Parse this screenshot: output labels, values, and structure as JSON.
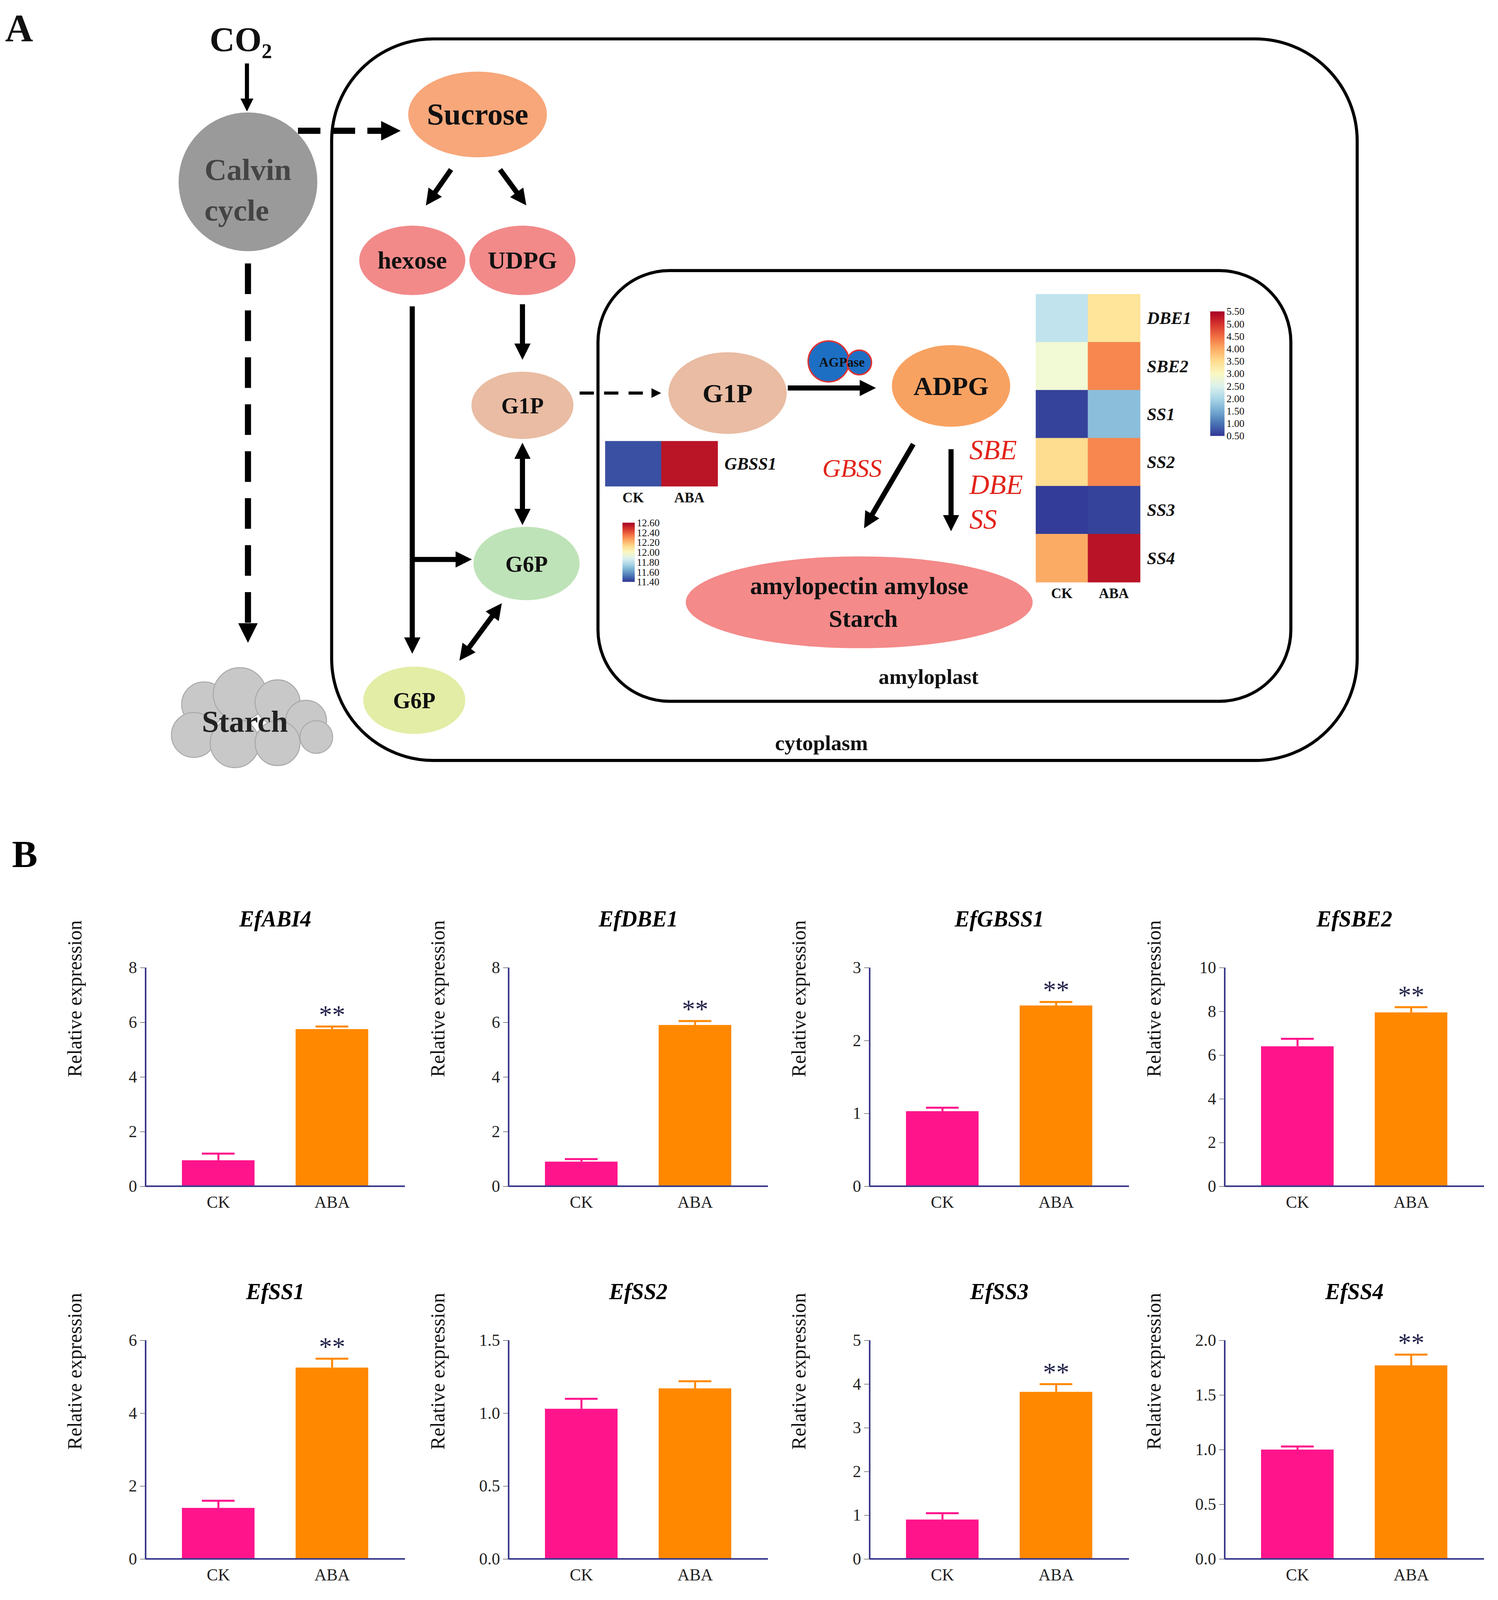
{
  "panel_labels": [
    "A",
    "B"
  ],
  "diagram": {
    "nodes": {
      "co2": "CO₂",
      "calvin": [
        "Calvin",
        "cycle"
      ],
      "starch_out": "Starch",
      "sucrose": "Sucrose",
      "hexose": "hexose",
      "udpg": "UDPG",
      "g1p": "G1P",
      "g6p": "G6P",
      "g6p_low": "G6P",
      "g1p_amy": "G1P",
      "agpase": "AGPase",
      "adpg": "ADPG",
      "product": [
        "amylopectin amylose",
        "Starch"
      ]
    },
    "enzymes": [
      "GBSS",
      "SBE",
      "DBE",
      "SS"
    ],
    "compartments": {
      "cytoplasm": "cytoplasm",
      "amyloplast": "amyloplast"
    },
    "heatmaps": [
      {
        "rows": [
          "GBSS1"
        ],
        "columns": [
          "CK",
          "ABA"
        ],
        "values": [
          [
            11.45,
            12.55
          ]
        ],
        "color_range": [
          11.4,
          12.6
        ],
        "color_ticks": [
          {
            "value": 12.6,
            "label": "12.60"
          },
          {
            "value": 12.4,
            "label": "12.40"
          },
          {
            "value": 12.2,
            "label": "12.20"
          },
          {
            "value": 12,
            "label": "12.00"
          },
          {
            "value": 11.8,
            "label": "11.80"
          },
          {
            "value": 11.6,
            "label": "11.60"
          },
          {
            "value": 11.4,
            "label": "11.40"
          }
        ]
      },
      {
        "rows": [
          "DBE1",
          "SBE2",
          "SS1",
          "SS2",
          "SS3",
          "SS4"
        ],
        "columns": [
          "CK",
          "ABA"
        ],
        "values": [
          [
            2.2,
            3.4
          ],
          [
            2.8,
            4.3
          ],
          [
            0.6,
            1.7
          ],
          [
            3.5,
            4.3
          ],
          [
            0.55,
            0.6
          ],
          [
            4.0,
            5.3
          ]
        ],
        "color_range": [
          0.5,
          5.5
        ],
        "color_ticks": [
          {
            "value": 5.5,
            "label": "5.50"
          },
          {
            "value": 5,
            "label": "5.00"
          },
          {
            "value": 4.5,
            "label": "4.50"
          },
          {
            "value": 4,
            "label": "4.00"
          },
          {
            "value": 3.5,
            "label": "3.50"
          },
          {
            "value": 3,
            "label": "3.00"
          },
          {
            "value": 2.5,
            "label": "2.50"
          },
          {
            "value": 2,
            "label": "2.00"
          },
          {
            "value": 1.5,
            "label": "1.50"
          },
          {
            "value": 1,
            "label": "1.00"
          },
          {
            "value": 0.5,
            "label": "0.50"
          }
        ]
      }
    ]
  },
  "chart_data": [
    {
      "type": "bar",
      "title": "EfABI4",
      "ylabel": "Relative expression",
      "categories": [
        "CK",
        "ABA"
      ],
      "values": [
        0.95,
        5.75
      ],
      "errors": [
        0.25,
        0.1
      ],
      "colors": [
        "#ff148c",
        "#ff8800"
      ],
      "ylim": [
        0,
        8
      ],
      "yticks": [
        0,
        2,
        4,
        6,
        8
      ],
      "annotations": [
        {
          "category": "ABA",
          "text": "**"
        }
      ]
    },
    {
      "type": "bar",
      "title": "EfDBE1",
      "ylabel": "Relative expression",
      "categories": [
        "CK",
        "ABA"
      ],
      "values": [
        0.9,
        5.9
      ],
      "errors": [
        0.1,
        0.15
      ],
      "colors": [
        "#ff148c",
        "#ff8800"
      ],
      "ylim": [
        0,
        8
      ],
      "yticks": [
        0,
        2,
        4,
        6,
        8
      ],
      "annotations": [
        {
          "category": "ABA",
          "text": "**"
        }
      ]
    },
    {
      "type": "bar",
      "title": "EfGBSS1",
      "ylabel": "Relative expression",
      "categories": [
        "CK",
        "ABA"
      ],
      "values": [
        1.03,
        2.48
      ],
      "errors": [
        0.05,
        0.05
      ],
      "colors": [
        "#ff148c",
        "#ff8800"
      ],
      "ylim": [
        0,
        3
      ],
      "yticks": [
        0,
        1,
        2,
        3
      ],
      "annotations": [
        {
          "category": "ABA",
          "text": "**"
        }
      ]
    },
    {
      "type": "bar",
      "title": "EfSBE2",
      "ylabel": "Relative expression",
      "categories": [
        "CK",
        "ABA"
      ],
      "values": [
        6.4,
        7.95
      ],
      "errors": [
        0.35,
        0.25
      ],
      "colors": [
        "#ff148c",
        "#ff8800"
      ],
      "ylim": [
        0,
        10
      ],
      "yticks": [
        0,
        2,
        4,
        6,
        8,
        10
      ],
      "annotations": [
        {
          "category": "ABA",
          "text": "**"
        }
      ]
    },
    {
      "type": "bar",
      "title": "EfSS1",
      "ylabel": "Relative expression",
      "categories": [
        "CK",
        "ABA"
      ],
      "values": [
        1.4,
        5.25
      ],
      "errors": [
        0.2,
        0.25
      ],
      "colors": [
        "#ff148c",
        "#ff8800"
      ],
      "ylim": [
        0,
        6
      ],
      "yticks": [
        0,
        2,
        4,
        6
      ],
      "annotations": [
        {
          "category": "ABA",
          "text": "**"
        }
      ]
    },
    {
      "type": "bar",
      "title": "EfSS2",
      "ylabel": "Relative expression",
      "categories": [
        "CK",
        "ABA"
      ],
      "values": [
        1.03,
        1.17
      ],
      "errors": [
        0.07,
        0.05
      ],
      "colors": [
        "#ff148c",
        "#ff8800"
      ],
      "ylim": [
        0,
        1.5
      ],
      "yticks": [
        {
          "value": 0,
          "label": "0.0"
        },
        {
          "value": 0.5,
          "label": "0.5"
        },
        {
          "value": 1,
          "label": "1.0"
        },
        {
          "value": 1.5,
          "label": "1.5"
        }
      ],
      "annotations": []
    },
    {
      "type": "bar",
      "title": "EfSS3",
      "ylabel": "Relative expression",
      "categories": [
        "CK",
        "ABA"
      ],
      "values": [
        0.9,
        3.82
      ],
      "errors": [
        0.15,
        0.18
      ],
      "colors": [
        "#ff148c",
        "#ff8800"
      ],
      "ylim": [
        0,
        5
      ],
      "yticks": [
        0,
        1,
        2,
        3,
        4,
        5
      ],
      "annotations": [
        {
          "category": "ABA",
          "text": "**"
        }
      ]
    },
    {
      "type": "bar",
      "title": "EfSS4",
      "ylabel": "Relative expression",
      "categories": [
        "CK",
        "ABA"
      ],
      "values": [
        1.0,
        1.77
      ],
      "errors": [
        0.03,
        0.1
      ],
      "colors": [
        "#ff148c",
        "#ff8800"
      ],
      "ylim": [
        0,
        2
      ],
      "yticks": [
        {
          "value": 0,
          "label": "0.0"
        },
        {
          "value": 0.5,
          "label": "0.5"
        },
        {
          "value": 1,
          "label": "1.0"
        },
        {
          "value": 1.5,
          "label": "1.5"
        },
        {
          "value": 2,
          "label": "2.0"
        }
      ],
      "annotations": [
        {
          "category": "ABA",
          "text": "**"
        }
      ]
    }
  ]
}
